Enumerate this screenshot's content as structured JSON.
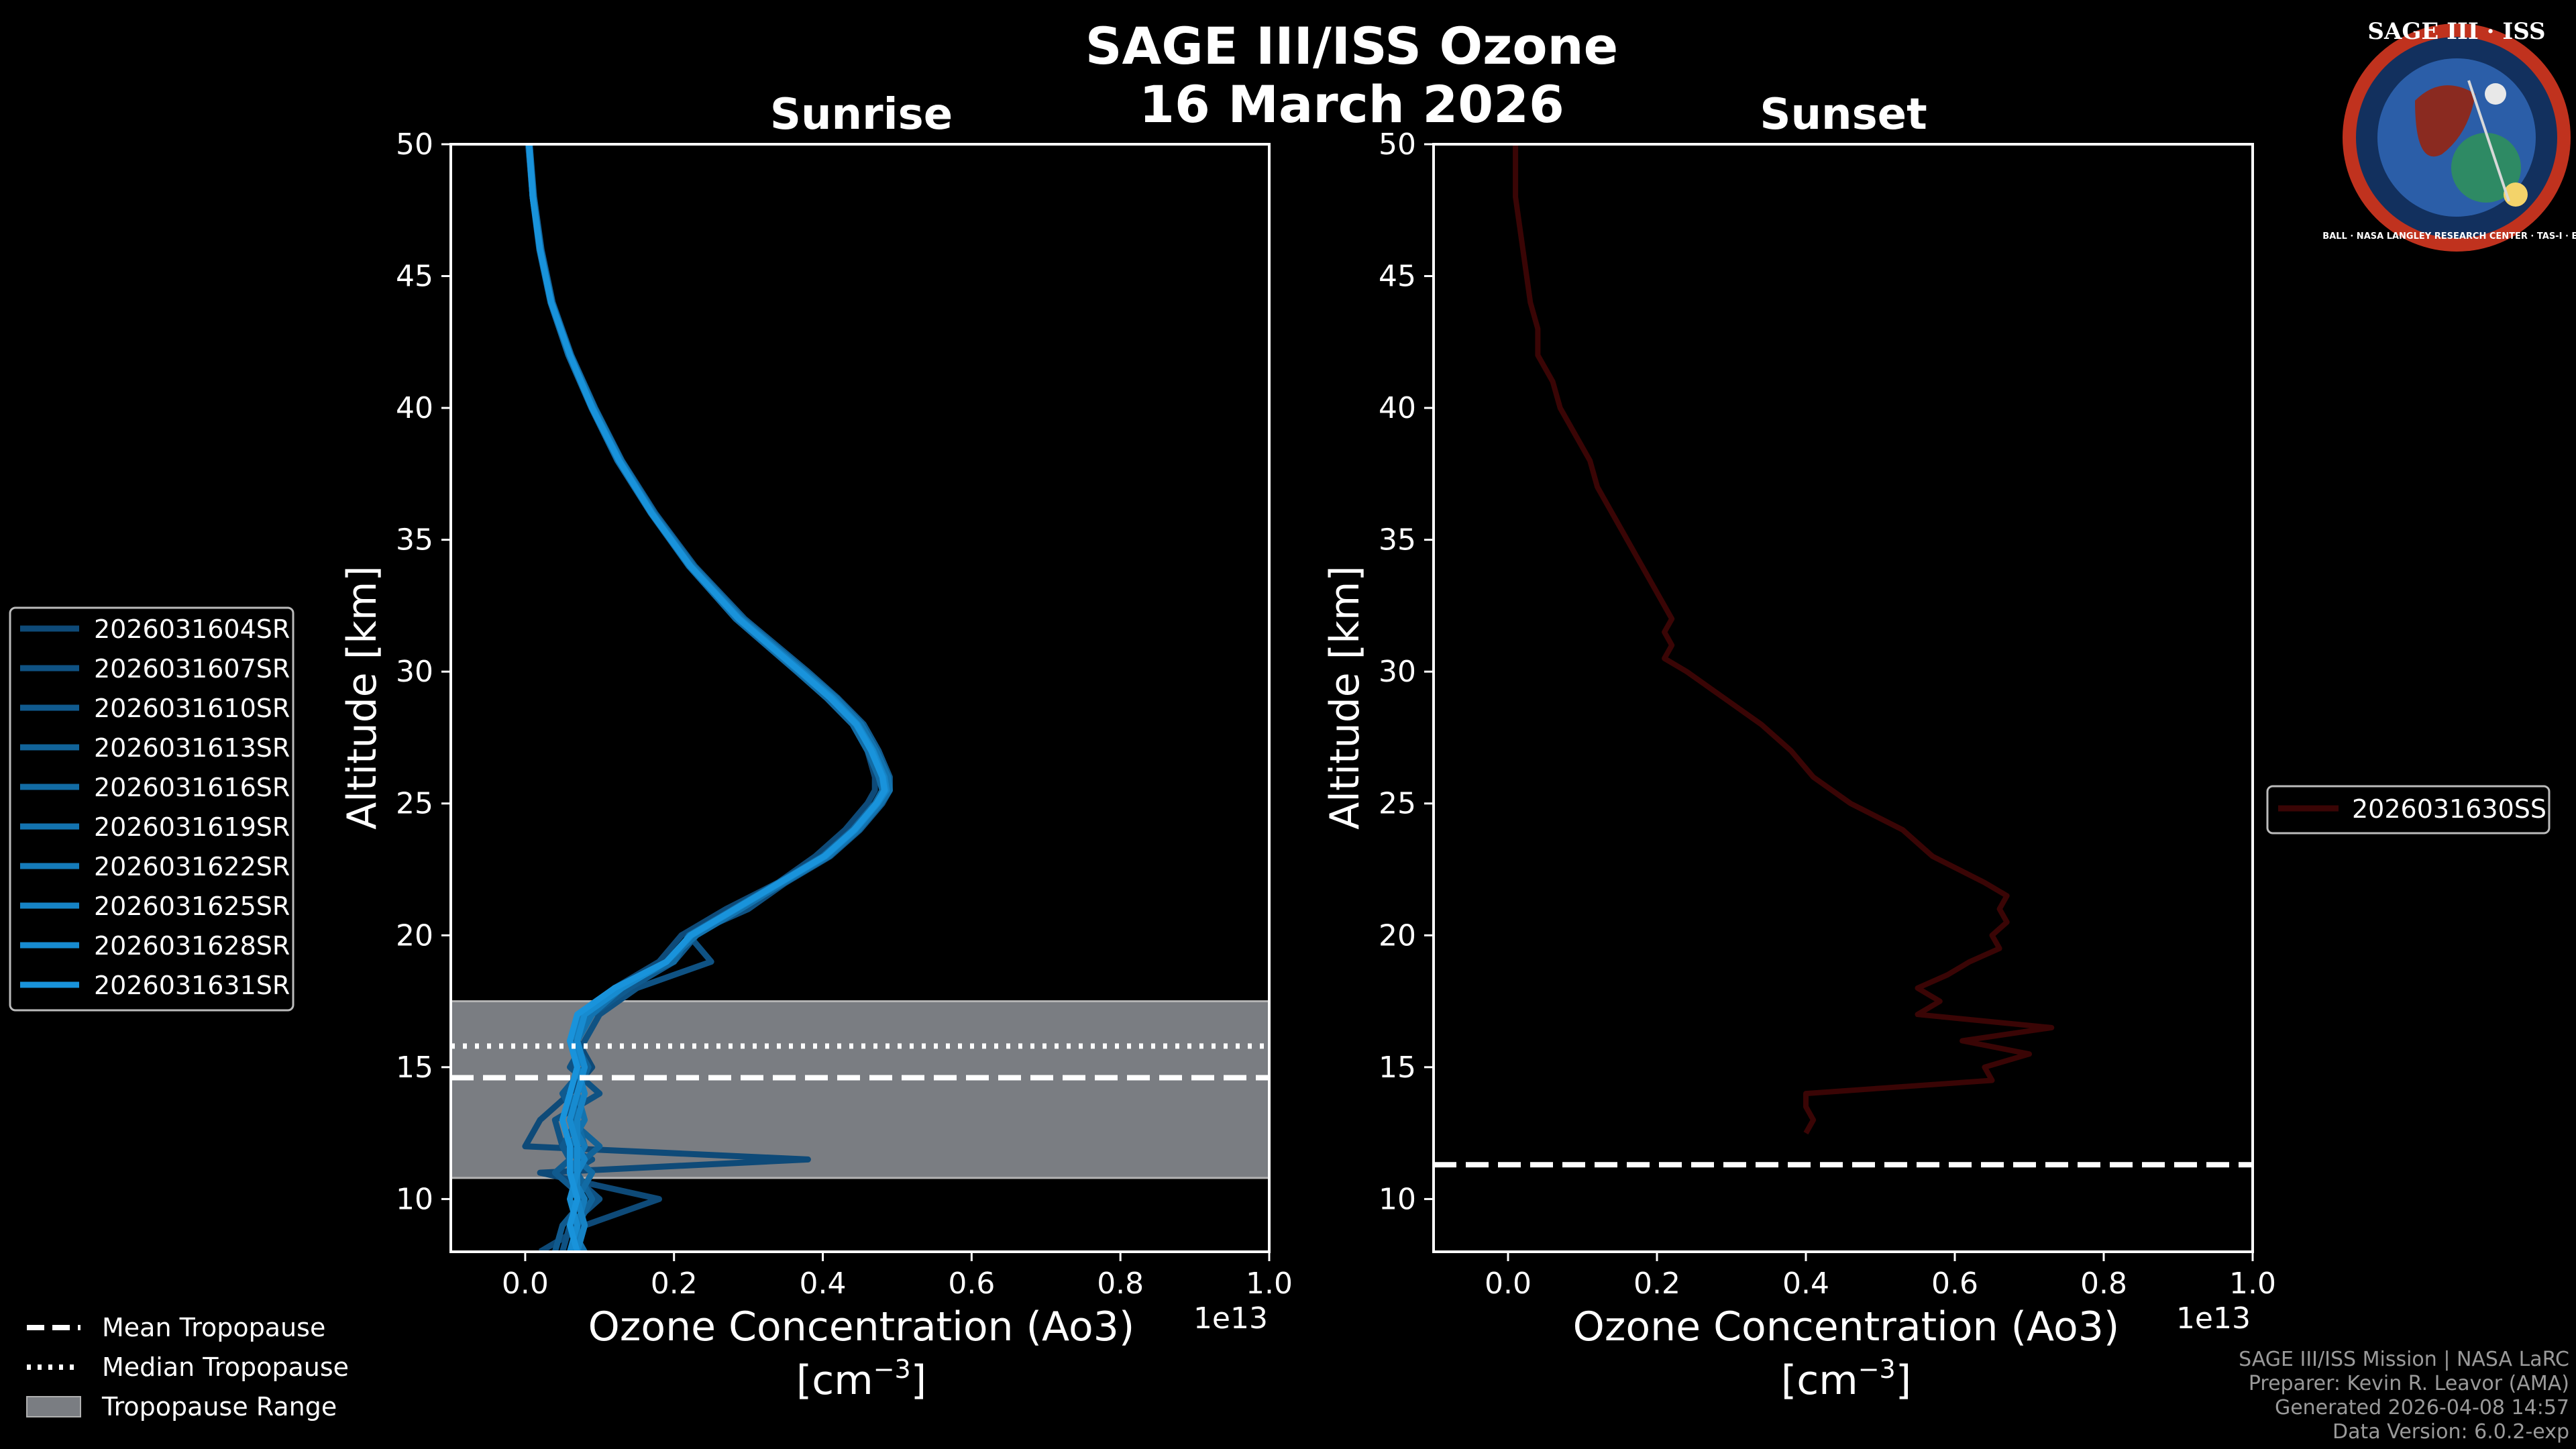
{
  "header": {
    "title": "SAGE III/ISS Ozone",
    "date": "16 March 2026"
  },
  "logo": {
    "top_text": "SAGE III · ISS",
    "ring_text": "BALL · NASA LANGLEY RESEARCH CENTER · TAS-I · ESA"
  },
  "colors": {
    "background": "#000000",
    "sunrise_series": "#1b8fd6",
    "sunset_series": "#3a0505",
    "tropopause_band": "#7a7d82"
  },
  "legend_tropopause": {
    "mean": "Mean Tropopause",
    "median": "Median Tropopause",
    "range": "Tropopause Range"
  },
  "footer": {
    "line1": "SAGE III/ISS Mission | NASA LaRC",
    "line2": "Preparer: Kevin R. Leavor (AMA)",
    "line3": "Generated 2026-04-08 14:57",
    "line4": "Data Version: 6.0.2-exp"
  },
  "chart_data": [
    {
      "type": "line",
      "title": "Sunrise",
      "xlabel": "Ozone Concentration (Ao3)",
      "xunit_base": "[cm",
      "xunit_exp": "−3",
      "xunit_close": "]",
      "ylabel": "Altitude [km]",
      "x_multiplier": "1e13",
      "xlim": [
        -0.1,
        1.0
      ],
      "ylim": [
        8,
        50
      ],
      "xticks": [
        "0.0",
        "0.2",
        "0.4",
        "0.6",
        "0.8",
        "1.0"
      ],
      "xtick_values": [
        0.0,
        0.2,
        0.4,
        0.6,
        0.8,
        1.0
      ],
      "yticks": [
        "10",
        "15",
        "20",
        "25",
        "30",
        "35",
        "40",
        "45",
        "50"
      ],
      "ytick_values": [
        10,
        15,
        20,
        25,
        30,
        35,
        40,
        45,
        50
      ],
      "altitudes": [
        50,
        48,
        46,
        44,
        42,
        40,
        38,
        36,
        34,
        32,
        30,
        29,
        28,
        27,
        26,
        25.5,
        25,
        24,
        23,
        22,
        21,
        20,
        19,
        18,
        17,
        16,
        15,
        14,
        13,
        12,
        11.5,
        11,
        10,
        9,
        8
      ],
      "series": [
        {
          "name": "2026031604SR",
          "values": [
            0.005,
            0.01,
            0.02,
            0.035,
            0.06,
            0.09,
            0.125,
            0.17,
            0.22,
            0.285,
            0.37,
            0.41,
            0.44,
            0.46,
            0.47,
            0.47,
            0.46,
            0.43,
            0.39,
            0.34,
            0.27,
            0.21,
            0.18,
            0.12,
            0.08,
            0.07,
            0.09,
            0.06,
            0.02,
            0.0,
            0.38,
            0.02,
            0.18,
            0.08,
            0.02
          ]
        },
        {
          "name": "2026031607SR",
          "values": [
            0.004,
            0.01,
            0.021,
            0.036,
            0.06,
            0.092,
            0.128,
            0.172,
            0.225,
            0.29,
            0.375,
            0.42,
            0.45,
            0.47,
            0.48,
            0.48,
            0.47,
            0.44,
            0.4,
            0.35,
            0.3,
            0.22,
            0.25,
            0.15,
            0.1,
            0.08,
            0.06,
            0.1,
            0.04,
            0.05,
            0.09,
            0.06,
            0.1,
            0.06,
            0.05
          ]
        },
        {
          "name": "2026031610SR",
          "values": [
            0.006,
            0.012,
            0.022,
            0.037,
            0.062,
            0.094,
            0.13,
            0.175,
            0.228,
            0.295,
            0.38,
            0.42,
            0.455,
            0.475,
            0.49,
            0.49,
            0.48,
            0.45,
            0.41,
            0.35,
            0.28,
            0.23,
            0.2,
            0.14,
            0.09,
            0.07,
            0.08,
            0.05,
            0.07,
            0.05,
            0.06,
            0.04,
            0.08,
            0.05,
            0.04
          ]
        },
        {
          "name": "2026031613SR",
          "values": [
            0.005,
            0.011,
            0.02,
            0.035,
            0.061,
            0.091,
            0.127,
            0.171,
            0.222,
            0.288,
            0.372,
            0.415,
            0.448,
            0.468,
            0.482,
            0.485,
            0.475,
            0.445,
            0.405,
            0.345,
            0.285,
            0.225,
            0.19,
            0.13,
            0.085,
            0.065,
            0.085,
            0.07,
            0.06,
            0.1,
            0.08,
            0.07,
            0.09,
            0.07,
            0.06
          ]
        },
        {
          "name": "2026031616SR",
          "values": [
            0.005,
            0.01,
            0.019,
            0.034,
            0.058,
            0.089,
            0.124,
            0.169,
            0.22,
            0.283,
            0.365,
            0.405,
            0.44,
            0.46,
            0.475,
            0.48,
            0.47,
            0.44,
            0.4,
            0.34,
            0.28,
            0.22,
            0.2,
            0.12,
            0.08,
            0.06,
            0.07,
            0.06,
            0.07,
            0.08,
            0.07,
            0.09,
            0.07,
            0.08,
            0.07
          ]
        },
        {
          "name": "2026031619SR",
          "values": [
            0.006,
            0.011,
            0.021,
            0.036,
            0.061,
            0.093,
            0.129,
            0.173,
            0.226,
            0.292,
            0.377,
            0.418,
            0.452,
            0.472,
            0.488,
            0.49,
            0.478,
            0.448,
            0.408,
            0.348,
            0.29,
            0.23,
            0.19,
            0.13,
            0.09,
            0.07,
            0.08,
            0.07,
            0.08,
            0.06,
            0.07,
            0.06,
            0.07,
            0.06,
            0.08
          ]
        },
        {
          "name": "2026031622SR",
          "values": [
            0.005,
            0.01,
            0.02,
            0.035,
            0.06,
            0.09,
            0.126,
            0.17,
            0.221,
            0.286,
            0.368,
            0.41,
            0.444,
            0.466,
            0.48,
            0.482,
            0.472,
            0.442,
            0.402,
            0.342,
            0.282,
            0.222,
            0.19,
            0.13,
            0.08,
            0.06,
            0.08,
            0.07,
            0.06,
            0.08,
            0.07,
            0.06,
            0.08,
            0.07,
            0.07
          ]
        },
        {
          "name": "2026031625SR",
          "values": [
            0.005,
            0.011,
            0.02,
            0.035,
            0.06,
            0.091,
            0.127,
            0.171,
            0.223,
            0.289,
            0.373,
            0.414,
            0.447,
            0.468,
            0.483,
            0.486,
            0.474,
            0.444,
            0.404,
            0.344,
            0.284,
            0.224,
            0.19,
            0.13,
            0.08,
            0.07,
            0.07,
            0.08,
            0.07,
            0.07,
            0.08,
            0.07,
            0.07,
            0.08,
            0.07
          ]
        },
        {
          "name": "2026031628SR",
          "values": [
            0.005,
            0.01,
            0.02,
            0.035,
            0.06,
            0.09,
            0.126,
            0.17,
            0.222,
            0.287,
            0.37,
            0.412,
            0.446,
            0.467,
            0.481,
            0.484,
            0.473,
            0.443,
            0.403,
            0.343,
            0.283,
            0.223,
            0.19,
            0.13,
            0.08,
            0.07,
            0.08,
            0.07,
            0.06,
            0.07,
            0.07,
            0.07,
            0.06,
            0.07,
            0.06
          ]
        },
        {
          "name": "2026031631SR",
          "values": [
            0.005,
            0.01,
            0.02,
            0.035,
            0.06,
            0.09,
            0.126,
            0.17,
            0.222,
            0.287,
            0.37,
            0.41,
            0.445,
            0.465,
            0.48,
            0.483,
            0.472,
            0.442,
            0.402,
            0.342,
            0.282,
            0.222,
            0.19,
            0.12,
            0.07,
            0.06,
            0.07,
            0.06,
            0.05,
            0.06,
            0.06,
            0.06,
            0.07,
            0.06,
            0.07
          ]
        }
      ],
      "tropopause": {
        "mean": 14.6,
        "median": 15.8,
        "range": [
          10.8,
          17.5
        ]
      },
      "legend_position": "left"
    },
    {
      "type": "line",
      "title": "Sunset",
      "xlabel": "Ozone Concentration (Ao3)",
      "xunit_base": "[cm",
      "xunit_exp": "−3",
      "xunit_close": "]",
      "ylabel": "Altitude [km]",
      "x_multiplier": "1e13",
      "xlim": [
        -0.1,
        1.0
      ],
      "ylim": [
        8,
        50
      ],
      "xticks": [
        "0.0",
        "0.2",
        "0.4",
        "0.6",
        "0.8",
        "1.0"
      ],
      "xtick_values": [
        0.0,
        0.2,
        0.4,
        0.6,
        0.8,
        1.0
      ],
      "yticks": [
        "10",
        "15",
        "20",
        "25",
        "30",
        "35",
        "40",
        "45",
        "50"
      ],
      "ytick_values": [
        10,
        15,
        20,
        25,
        30,
        35,
        40,
        45,
        50
      ],
      "series": [
        {
          "name": "2026031630SS",
          "altitudes": [
            50,
            48,
            46,
            44,
            43,
            42,
            41,
            40,
            39,
            38,
            37,
            36,
            35,
            34,
            33,
            32,
            31.5,
            31,
            30.5,
            30,
            29,
            28,
            27,
            26,
            25,
            24,
            23,
            22,
            21.5,
            21,
            20.5,
            20,
            19.5,
            19,
            18.5,
            18,
            17.5,
            17,
            16.5,
            16,
            15.5,
            15,
            14.5,
            14,
            13.5,
            13,
            12.5
          ],
          "values": [
            0.01,
            0.01,
            0.02,
            0.03,
            0.04,
            0.04,
            0.06,
            0.07,
            0.09,
            0.11,
            0.12,
            0.14,
            0.16,
            0.18,
            0.2,
            0.22,
            0.21,
            0.22,
            0.21,
            0.24,
            0.29,
            0.34,
            0.38,
            0.41,
            0.46,
            0.53,
            0.57,
            0.64,
            0.67,
            0.66,
            0.67,
            0.65,
            0.66,
            0.62,
            0.59,
            0.55,
            0.58,
            0.55,
            0.73,
            0.61,
            0.7,
            0.64,
            0.65,
            0.4,
            0.4,
            0.41,
            0.4
          ]
        }
      ],
      "tropopause": {
        "mean": 11.3
      },
      "legend_position": "right"
    }
  ]
}
